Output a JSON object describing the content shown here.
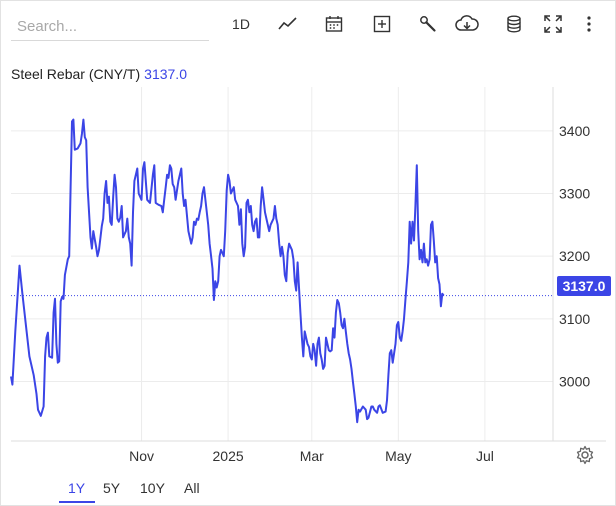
{
  "search": {
    "placeholder": "Search..."
  },
  "toolbar": {
    "interval_label": "1D",
    "icons": [
      "line-chart-icon",
      "calendar-icon",
      "plus-square-icon",
      "wrench-icon",
      "cloud-download-icon",
      "database-icon",
      "fullscreen-icon",
      "more-vertical-icon"
    ]
  },
  "instrument": {
    "name": "Steel Rebar (CNY/T)",
    "price": "3137.0",
    "price_tag": "3137.0"
  },
  "ranges": [
    {
      "label": "1Y",
      "active": true
    },
    {
      "label": "5Y",
      "active": false
    },
    {
      "label": "10Y",
      "active": false
    },
    {
      "label": "All",
      "active": false
    }
  ],
  "colors": {
    "accent": "#3b45e6",
    "grid": "#ececec",
    "baseline": "#3b45e6"
  },
  "chart_data": {
    "type": "line",
    "y_ticks": [
      "3400",
      "3300",
      "3200",
      "3100",
      "3000"
    ],
    "y_tick_values": [
      3400,
      3300,
      3200,
      3100,
      3000
    ],
    "x_tick_labels": [
      "Nov",
      "2025",
      "Mar",
      "May",
      "Jul"
    ],
    "x_tick_days": [
      92,
      153,
      212,
      273,
      334
    ],
    "x_range_days": [
      0,
      382
    ],
    "ylim": [
      2905,
      3470
    ],
    "last_value": 3137.0,
    "grid": true,
    "series": [
      {
        "values": [
          [
            0,
            3008
          ],
          [
            1,
            2995
          ],
          [
            3,
            3080
          ],
          [
            5,
            3150
          ],
          [
            6,
            3185
          ],
          [
            8,
            3140
          ],
          [
            11,
            3080
          ],
          [
            13,
            3040
          ],
          [
            16,
            3010
          ],
          [
            18,
            2980
          ],
          [
            19,
            2955
          ],
          [
            21,
            2945
          ],
          [
            23,
            2960
          ],
          [
            24,
            3040
          ],
          [
            25,
            3070
          ],
          [
            26,
            3078
          ],
          [
            27,
            3040
          ],
          [
            29,
            3038
          ],
          [
            30,
            3110
          ],
          [
            31,
            3132
          ],
          [
            32,
            3060
          ],
          [
            33,
            3030
          ],
          [
            34,
            3032
          ],
          [
            35,
            3128
          ],
          [
            36,
            3135
          ],
          [
            37,
            3132
          ],
          [
            38,
            3170
          ],
          [
            40,
            3195
          ],
          [
            41,
            3200
          ],
          [
            42,
            3310
          ],
          [
            43,
            3415
          ],
          [
            44,
            3418
          ],
          [
            45,
            3370
          ],
          [
            47,
            3372
          ],
          [
            49,
            3380
          ],
          [
            50,
            3395
          ],
          [
            51,
            3418
          ],
          [
            52,
            3390
          ],
          [
            53,
            3385
          ],
          [
            54,
            3310
          ],
          [
            56,
            3230
          ],
          [
            57,
            3212
          ],
          [
            58,
            3240
          ],
          [
            60,
            3215
          ],
          [
            61,
            3200
          ],
          [
            62,
            3210
          ],
          [
            64,
            3248
          ],
          [
            65,
            3260
          ],
          [
            66,
            3300
          ],
          [
            67,
            3320
          ],
          [
            68,
            3285
          ],
          [
            69,
            3295
          ],
          [
            70,
            3255
          ],
          [
            71,
            3250
          ],
          [
            72,
            3295
          ],
          [
            73,
            3330
          ],
          [
            74,
            3310
          ],
          [
            75,
            3260
          ],
          [
            76,
            3255
          ],
          [
            77,
            3262
          ],
          [
            78,
            3280
          ],
          [
            79,
            3230
          ],
          [
            80,
            3235
          ],
          [
            81,
            3240
          ],
          [
            82,
            3260
          ],
          [
            83,
            3230
          ],
          [
            84,
            3220
          ],
          [
            85,
            3185
          ],
          [
            86,
            3270
          ],
          [
            87,
            3320
          ],
          [
            89,
            3340
          ],
          [
            90,
            3300
          ],
          [
            92,
            3290
          ],
          [
            93,
            3340
          ],
          [
            94,
            3350
          ],
          [
            96,
            3290
          ],
          [
            98,
            3285
          ],
          [
            100,
            3330
          ],
          [
            101,
            3345
          ],
          [
            102,
            3285
          ],
          [
            104,
            3282
          ],
          [
            106,
            3280
          ],
          [
            107,
            3270
          ],
          [
            108,
            3290
          ],
          [
            109,
            3310
          ],
          [
            110,
            3330
          ],
          [
            111,
            3325
          ],
          [
            112,
            3345
          ],
          [
            113,
            3340
          ],
          [
            114,
            3315
          ],
          [
            115,
            3310
          ],
          [
            116,
            3290
          ],
          [
            117,
            3305
          ],
          [
            118,
            3320
          ],
          [
            120,
            3340
          ],
          [
            121,
            3300
          ],
          [
            122,
            3280
          ],
          [
            123,
            3290
          ],
          [
            125,
            3240
          ],
          [
            126,
            3230
          ],
          [
            127,
            3220
          ],
          [
            128,
            3230
          ],
          [
            129,
            3255
          ],
          [
            130,
            3250
          ],
          [
            131,
            3260
          ],
          [
            132,
            3258
          ],
          [
            133,
            3270
          ],
          [
            134,
            3280
          ],
          [
            135,
            3300
          ],
          [
            136,
            3310
          ],
          [
            137,
            3290
          ],
          [
            139,
            3250
          ],
          [
            140,
            3220
          ],
          [
            141,
            3200
          ],
          [
            142,
            3180
          ],
          [
            143,
            3130
          ],
          [
            144,
            3160
          ],
          [
            145,
            3150
          ],
          [
            146,
            3160
          ],
          [
            147,
            3200
          ],
          [
            148,
            3210
          ],
          [
            149,
            3205
          ],
          [
            150,
            3200
          ],
          [
            151,
            3240
          ],
          [
            152,
            3305
          ],
          [
            153,
            3330
          ],
          [
            154,
            3320
          ],
          [
            155,
            3300
          ],
          [
            157,
            3310
          ],
          [
            158,
            3290
          ],
          [
            159,
            3285
          ],
          [
            160,
            3280
          ],
          [
            161,
            3250
          ],
          [
            162,
            3275
          ],
          [
            163,
            3220
          ],
          [
            164,
            3200
          ],
          [
            165,
            3215
          ],
          [
            166,
            3285
          ],
          [
            167,
            3290
          ],
          [
            168,
            3270
          ],
          [
            169,
            3280
          ],
          [
            170,
            3250
          ],
          [
            171,
            3240
          ],
          [
            172,
            3255
          ],
          [
            173,
            3260
          ],
          [
            174,
            3230
          ],
          [
            175,
            3230
          ],
          [
            176,
            3280
          ],
          [
            177,
            3310
          ],
          [
            178,
            3290
          ],
          [
            179,
            3270
          ],
          [
            180,
            3260
          ],
          [
            182,
            3240
          ],
          [
            183,
            3250
          ],
          [
            185,
            3260
          ],
          [
            186,
            3280
          ],
          [
            187,
            3260
          ],
          [
            188,
            3250
          ],
          [
            189,
            3220
          ],
          [
            190,
            3200
          ],
          [
            191,
            3215
          ],
          [
            192,
            3200
          ],
          [
            193,
            3170
          ],
          [
            194,
            3160
          ],
          [
            195,
            3205
          ],
          [
            196,
            3220
          ],
          [
            197,
            3215
          ],
          [
            198,
            3210
          ],
          [
            199,
            3195
          ],
          [
            200,
            3160
          ],
          [
            201,
            3145
          ],
          [
            202,
            3190
          ],
          [
            203,
            3150
          ],
          [
            204,
            3110
          ],
          [
            205,
            3070
          ],
          [
            206,
            3040
          ],
          [
            207,
            3080
          ],
          [
            208,
            3070
          ],
          [
            209,
            3060
          ],
          [
            210,
            3055
          ],
          [
            211,
            3040
          ],
          [
            212,
            3035
          ],
          [
            213,
            3060
          ],
          [
            214,
            3050
          ],
          [
            215,
            3025
          ],
          [
            216,
            3060
          ],
          [
            217,
            3070
          ],
          [
            218,
            3045
          ],
          [
            219,
            3035
          ],
          [
            220,
            3020
          ],
          [
            221,
            3025
          ],
          [
            222,
            3070
          ],
          [
            223,
            3060
          ],
          [
            224,
            3050
          ],
          [
            225,
            3048
          ],
          [
            226,
            3050
          ],
          [
            227,
            3085
          ],
          [
            228,
            3070
          ],
          [
            229,
            3110
          ],
          [
            230,
            3130
          ],
          [
            231,
            3125
          ],
          [
            232,
            3110
          ],
          [
            233,
            3090
          ],
          [
            234,
            3085
          ],
          [
            235,
            3100
          ],
          [
            236,
            3080
          ],
          [
            237,
            3060
          ],
          [
            238,
            3045
          ],
          [
            239,
            3035
          ],
          [
            240,
            3020
          ],
          [
            241,
            3000
          ],
          [
            242,
            2980
          ],
          [
            243,
            2960
          ],
          [
            244,
            2935
          ],
          [
            245,
            2955
          ],
          [
            246,
            2952
          ],
          [
            248,
            2960
          ],
          [
            250,
            2955
          ],
          [
            251,
            2940
          ],
          [
            252,
            2942
          ],
          [
            254,
            2960
          ],
          [
            255,
            2960
          ],
          [
            256,
            2955
          ],
          [
            258,
            2950
          ],
          [
            259,
            2960
          ],
          [
            260,
            2962
          ],
          [
            262,
            2950
          ],
          [
            264,
            2952
          ],
          [
            265,
            2970
          ],
          [
            266,
            3010
          ],
          [
            267,
            3045
          ],
          [
            268,
            3050
          ],
          [
            269,
            3030
          ],
          [
            270,
            3045
          ],
          [
            271,
            3060
          ],
          [
            272,
            3090
          ],
          [
            273,
            3095
          ],
          [
            274,
            3070
          ],
          [
            275,
            3065
          ],
          [
            276,
            3080
          ],
          [
            277,
            3100
          ],
          [
            278,
            3130
          ],
          [
            279,
            3160
          ],
          [
            280,
            3190
          ],
          [
            281,
            3255
          ],
          [
            282,
            3220
          ],
          [
            283,
            3255
          ],
          [
            284,
            3225
          ],
          [
            285,
            3280
          ],
          [
            286,
            3345
          ],
          [
            287,
            3240
          ],
          [
            288,
            3195
          ],
          [
            289,
            3210
          ],
          [
            290,
            3190
          ],
          [
            291,
            3220
          ],
          [
            292,
            3190
          ],
          [
            293,
            3195
          ],
          [
            294,
            3185
          ],
          [
            295,
            3195
          ],
          [
            296,
            3250
          ],
          [
            297,
            3255
          ],
          [
            298,
            3225
          ],
          [
            299,
            3190
          ],
          [
            300,
            3200
          ],
          [
            301,
            3165
          ],
          [
            302,
            3155
          ],
          [
            303,
            3120
          ],
          [
            304,
            3140
          ],
          [
            305,
            3137
          ]
        ]
      }
    ]
  }
}
